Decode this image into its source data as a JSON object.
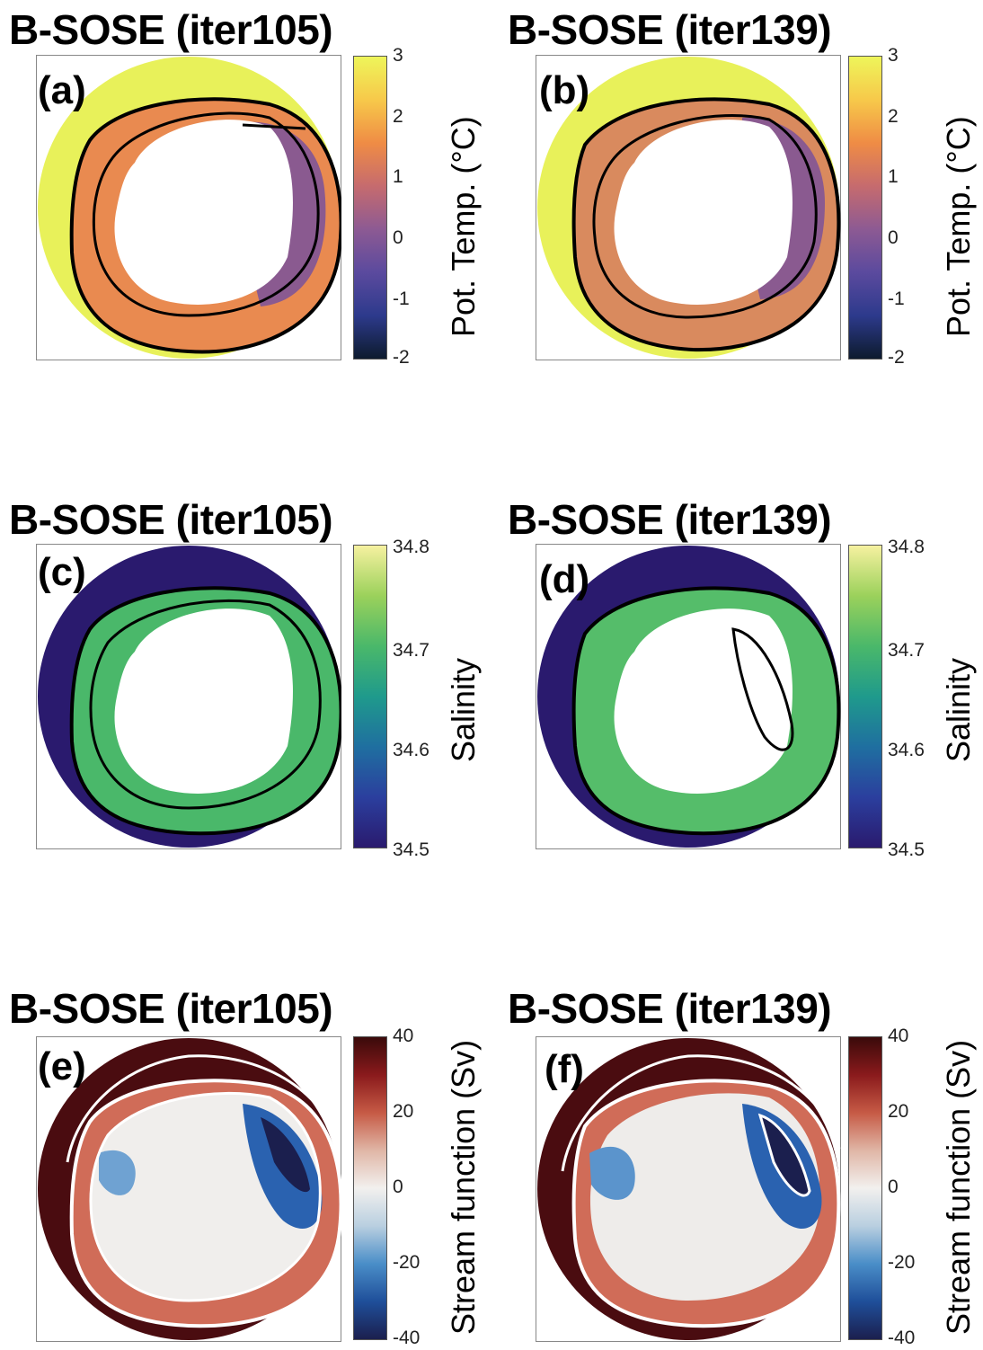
{
  "panels": [
    {
      "id": "a",
      "title": "B-SOSE (iter105)",
      "letter": "(a)",
      "var": "temp"
    },
    {
      "id": "b",
      "title": "B-SOSE (iter139)",
      "letter": "(b)",
      "var": "temp"
    },
    {
      "id": "c",
      "title": "B-SOSE (iter105)",
      "letter": "(c)",
      "var": "salt"
    },
    {
      "id": "d",
      "title": "B-SOSE (iter139)",
      "letter": "(d)",
      "var": "salt"
    },
    {
      "id": "e",
      "title": "B-SOSE (iter105)",
      "letter": "(e)",
      "var": "psi"
    },
    {
      "id": "f",
      "title": "B-SOSE (iter139)",
      "letter": "(f)",
      "var": "psi"
    }
  ],
  "colorbars": {
    "temp": {
      "label": "Pot. Temp. (°C)",
      "ticks": [
        "3",
        "2",
        "1",
        "0",
        "-1",
        "-2"
      ],
      "range": [
        -2,
        3
      ],
      "colors": [
        "#0d1b2e",
        "#2d3a8c",
        "#5b4a9e",
        "#8d5a93",
        "#c66b6e",
        "#ef8c45",
        "#f7c94a",
        "#eef55a"
      ]
    },
    "salt": {
      "label": "Salinity",
      "ticks": [
        "34.8",
        "34.7",
        "34.6",
        "34.5"
      ],
      "range": [
        34.5,
        34.8
      ],
      "colors": [
        "#2a1a6e",
        "#2b3f9e",
        "#1f6fa0",
        "#1f9a8c",
        "#4ab86a",
        "#9bd15b",
        "#f6f1a0"
      ]
    },
    "psi": {
      "label": "Stream function (Sv)",
      "ticks": [
        "40",
        "20",
        "0",
        "-20",
        "-40"
      ],
      "range": [
        -40,
        40
      ],
      "colors": [
        "#1b1f4e",
        "#1f4f9a",
        "#4a8ec8",
        "#b9cfe0",
        "#f2f0ee",
        "#e0b6a6",
        "#c65a45",
        "#8a1a1c",
        "#3a0a0a"
      ]
    }
  }
}
